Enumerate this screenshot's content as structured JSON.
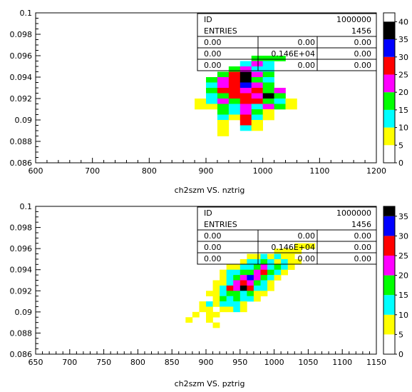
{
  "chart_data": [
    {
      "type": "heatmap",
      "xlabel": "ch2szm VS. nztrig",
      "xlim": [
        600,
        1200
      ],
      "ylim": [
        0.086,
        0.1
      ],
      "xticks": [
        600,
        700,
        800,
        900,
        1000,
        1100,
        1200
      ],
      "yticks": [
        0.086,
        0.088,
        0.09,
        0.092,
        0.094,
        0.096,
        0.098,
        0.1
      ],
      "xtick_labels": [
        "600",
        "700",
        "800",
        "900",
        "1000",
        "1100",
        "1200"
      ],
      "ytick_labels": [
        "0.086",
        "0.088",
        "0.09",
        "0.092",
        "0.094",
        "0.096",
        "0.098",
        "0.1"
      ],
      "colorbar": {
        "range": [
          0,
          42.5
        ],
        "levels": [
          0,
          5,
          10,
          15,
          20,
          25,
          30,
          35,
          40
        ],
        "tick_labels": [
          "0",
          "5",
          "10",
          "15",
          "20",
          "25",
          "30",
          "35",
          "40"
        ],
        "colors": [
          "#ffffff",
          "#ffff00",
          "#00ffff",
          "#00ff00",
          "#ff00ff",
          "#ff0000",
          "#0000ff",
          "#000000"
        ]
      },
      "stats": {
        "id_label": "ID",
        "id_value": "1000000",
        "entries_label": "ENTRIES",
        "entries_value": "1456",
        "grid": [
          [
            "0.00",
            "0.00",
            "0.00"
          ],
          [
            "0.00",
            "0.146E+04",
            "0.00"
          ],
          [
            "0.00",
            "0.00",
            "0.00"
          ]
        ]
      },
      "bin_width": [
        20,
        0.0005
      ],
      "cells": [
        [
          980,
          0.0955,
          3
        ],
        [
          1000,
          0.0955,
          3
        ],
        [
          1020,
          0.0955,
          3
        ],
        [
          960,
          0.095,
          2
        ],
        [
          980,
          0.095,
          4
        ],
        [
          1000,
          0.095,
          2
        ],
        [
          940,
          0.0945,
          3
        ],
        [
          960,
          0.0945,
          4
        ],
        [
          980,
          0.0945,
          2
        ],
        [
          1000,
          0.0945,
          2
        ],
        [
          920,
          0.094,
          3
        ],
        [
          940,
          0.094,
          5
        ],
        [
          960,
          0.094,
          7
        ],
        [
          980,
          0.094,
          4
        ],
        [
          1000,
          0.094,
          3
        ],
        [
          900,
          0.0935,
          3
        ],
        [
          920,
          0.0935,
          4
        ],
        [
          940,
          0.0935,
          5
        ],
        [
          960,
          0.0935,
          8
        ],
        [
          980,
          0.0935,
          3
        ],
        [
          1000,
          0.0935,
          2
        ],
        [
          900,
          0.093,
          2
        ],
        [
          920,
          0.093,
          4
        ],
        [
          940,
          0.093,
          5
        ],
        [
          960,
          0.093,
          6
        ],
        [
          980,
          0.093,
          4
        ],
        [
          1000,
          0.093,
          3
        ],
        [
          900,
          0.0925,
          3
        ],
        [
          920,
          0.0925,
          5
        ],
        [
          940,
          0.0925,
          5
        ],
        [
          960,
          0.0925,
          4
        ],
        [
          980,
          0.0925,
          5
        ],
        [
          1000,
          0.0925,
          3
        ],
        [
          1020,
          0.0925,
          4
        ],
        [
          900,
          0.092,
          2
        ],
        [
          920,
          0.092,
          3
        ],
        [
          940,
          0.092,
          5
        ],
        [
          960,
          0.092,
          5
        ],
        [
          980,
          0.092,
          4
        ],
        [
          1000,
          0.092,
          7
        ],
        [
          1020,
          0.092,
          3
        ],
        [
          880,
          0.0915,
          1
        ],
        [
          900,
          0.0915,
          2
        ],
        [
          920,
          0.0915,
          4
        ],
        [
          940,
          0.0915,
          3
        ],
        [
          960,
          0.0915,
          5
        ],
        [
          980,
          0.0915,
          5
        ],
        [
          1000,
          0.0915,
          3
        ],
        [
          1020,
          0.0915,
          2
        ],
        [
          1040,
          0.0915,
          1
        ],
        [
          880,
          0.091,
          1
        ],
        [
          900,
          0.091,
          1
        ],
        [
          920,
          0.091,
          3
        ],
        [
          940,
          0.091,
          2
        ],
        [
          960,
          0.091,
          4
        ],
        [
          980,
          0.091,
          2
        ],
        [
          1000,
          0.091,
          4
        ],
        [
          1020,
          0.091,
          3
        ],
        [
          1040,
          0.091,
          1
        ],
        [
          920,
          0.0905,
          3
        ],
        [
          940,
          0.0905,
          2
        ],
        [
          960,
          0.0905,
          4
        ],
        [
          980,
          0.0905,
          3
        ],
        [
          1000,
          0.0905,
          1
        ],
        [
          920,
          0.09,
          2
        ],
        [
          940,
          0.09,
          1
        ],
        [
          960,
          0.09,
          5
        ],
        [
          980,
          0.09,
          2
        ],
        [
          1000,
          0.09,
          1
        ],
        [
          920,
          0.0895,
          1
        ],
        [
          960,
          0.0895,
          5
        ],
        [
          980,
          0.0895,
          1
        ],
        [
          920,
          0.089,
          1
        ],
        [
          960,
          0.089,
          2
        ],
        [
          980,
          0.089,
          1
        ],
        [
          920,
          0.0885,
          1
        ]
      ]
    },
    {
      "type": "heatmap",
      "xlabel": "ch2szm VS. pztrig",
      "xlim": [
        650,
        1150
      ],
      "ylim": [
        0.086,
        0.1
      ],
      "xticks": [
        650,
        700,
        750,
        800,
        850,
        900,
        950,
        1000,
        1050,
        1100,
        1150
      ],
      "yticks": [
        0.086,
        0.088,
        0.09,
        0.092,
        0.094,
        0.096,
        0.098,
        0.1
      ],
      "xtick_labels": [
        "650",
        "700",
        "750",
        "800",
        "850",
        "900",
        "950",
        "1000",
        "1050",
        "1100",
        "1150"
      ],
      "ytick_labels": [
        "0.086",
        "0.088",
        "0.09",
        "0.092",
        "0.094",
        "0.096",
        "0.098",
        "0.1"
      ],
      "colorbar": {
        "range": [
          0,
          37.5
        ],
        "levels": [
          0,
          5,
          10,
          15,
          20,
          25,
          30,
          35
        ],
        "tick_labels": [
          "0",
          "5",
          "10",
          "15",
          "20",
          "25",
          "30",
          "35"
        ],
        "colors": [
          "#ffffff",
          "#ffff00",
          "#00ffff",
          "#00ff00",
          "#ff00ff",
          "#ff0000",
          "#0000ff",
          "#000000"
        ]
      },
      "stats": {
        "id_label": "ID",
        "id_value": "1000000",
        "entries_label": "ENTRIES",
        "entries_value": "1456",
        "grid": [
          [
            "0.00",
            "0.00",
            "0.00"
          ],
          [
            "0.00",
            "0.146E+04",
            "0.00"
          ],
          [
            "0.00",
            "0.00",
            "0.00"
          ]
        ]
      },
      "bin_width": [
        10,
        0.0005
      ],
      "cells": [
        [
          1030,
          0.096,
          1
        ],
        [
          1040,
          0.096,
          1
        ],
        [
          1050,
          0.096,
          1
        ],
        [
          1000,
          0.0955,
          1
        ],
        [
          1010,
          0.0955,
          1
        ],
        [
          1020,
          0.0955,
          1
        ],
        [
          1030,
          0.0955,
          1
        ],
        [
          960,
          0.095,
          1
        ],
        [
          970,
          0.095,
          1
        ],
        [
          980,
          0.095,
          2
        ],
        [
          990,
          0.095,
          1
        ],
        [
          1000,
          0.095,
          2
        ],
        [
          1010,
          0.095,
          1
        ],
        [
          1020,
          0.095,
          1
        ],
        [
          950,
          0.0945,
          1
        ],
        [
          960,
          0.0945,
          2
        ],
        [
          970,
          0.0945,
          2
        ],
        [
          980,
          0.0945,
          3
        ],
        [
          990,
          0.0945,
          2
        ],
        [
          1000,
          0.0945,
          1
        ],
        [
          1010,
          0.0945,
          2
        ],
        [
          1020,
          0.0945,
          1
        ],
        [
          1030,
          0.0945,
          1
        ],
        [
          930,
          0.094,
          1
        ],
        [
          940,
          0.094,
          1
        ],
        [
          950,
          0.094,
          2
        ],
        [
          960,
          0.094,
          2
        ],
        [
          970,
          0.094,
          3
        ],
        [
          980,
          0.094,
          4
        ],
        [
          990,
          0.094,
          2
        ],
        [
          1000,
          0.094,
          3
        ],
        [
          1010,
          0.094,
          2
        ],
        [
          1020,
          0.094,
          1
        ],
        [
          920,
          0.0935,
          1
        ],
        [
          930,
          0.0935,
          2
        ],
        [
          940,
          0.0935,
          2
        ],
        [
          950,
          0.0935,
          3
        ],
        [
          960,
          0.0935,
          3
        ],
        [
          970,
          0.0935,
          4
        ],
        [
          980,
          0.0935,
          5
        ],
        [
          990,
          0.0935,
          3
        ],
        [
          1000,
          0.0935,
          2
        ],
        [
          1010,
          0.0935,
          1
        ],
        [
          920,
          0.093,
          1
        ],
        [
          930,
          0.093,
          2
        ],
        [
          940,
          0.093,
          3
        ],
        [
          950,
          0.093,
          4
        ],
        [
          960,
          0.093,
          6
        ],
        [
          970,
          0.093,
          4
        ],
        [
          980,
          0.093,
          3
        ],
        [
          990,
          0.093,
          2
        ],
        [
          1000,
          0.093,
          1
        ],
        [
          910,
          0.0925,
          1
        ],
        [
          920,
          0.0925,
          1
        ],
        [
          930,
          0.0925,
          2
        ],
        [
          940,
          0.0925,
          4
        ],
        [
          950,
          0.0925,
          5
        ],
        [
          960,
          0.0925,
          4
        ],
        [
          970,
          0.0925,
          3
        ],
        [
          980,
          0.0925,
          2
        ],
        [
          990,
          0.0925,
          1
        ],
        [
          910,
          0.092,
          1
        ],
        [
          920,
          0.092,
          2
        ],
        [
          930,
          0.092,
          5
        ],
        [
          940,
          0.092,
          4
        ],
        [
          950,
          0.092,
          8
        ],
        [
          960,
          0.092,
          5
        ],
        [
          970,
          0.092,
          2
        ],
        [
          980,
          0.092,
          2
        ],
        [
          990,
          0.092,
          1
        ],
        [
          900,
          0.0915,
          1
        ],
        [
          910,
          0.0915,
          1
        ],
        [
          920,
          0.0915,
          2
        ],
        [
          930,
          0.0915,
          3
        ],
        [
          940,
          0.0915,
          3
        ],
        [
          950,
          0.0915,
          2
        ],
        [
          960,
          0.0915,
          3
        ],
        [
          970,
          0.0915,
          1
        ],
        [
          980,
          0.0915,
          1
        ],
        [
          910,
          0.091,
          1
        ],
        [
          920,
          0.091,
          3
        ],
        [
          930,
          0.091,
          2
        ],
        [
          940,
          0.091,
          3
        ],
        [
          950,
          0.091,
          2
        ],
        [
          960,
          0.091,
          2
        ],
        [
          970,
          0.091,
          1
        ],
        [
          890,
          0.0905,
          1
        ],
        [
          900,
          0.0905,
          2
        ],
        [
          910,
          0.0905,
          1
        ],
        [
          920,
          0.0905,
          2
        ],
        [
          930,
          0.0905,
          2
        ],
        [
          940,
          0.0905,
          2
        ],
        [
          950,
          0.0905,
          1
        ],
        [
          890,
          0.09,
          1
        ],
        [
          900,
          0.09,
          1
        ],
        [
          920,
          0.09,
          1
        ],
        [
          930,
          0.09,
          1
        ],
        [
          940,
          0.09,
          2
        ],
        [
          950,
          0.09,
          1
        ],
        [
          880,
          0.0895,
          1
        ],
        [
          900,
          0.0895,
          1
        ],
        [
          910,
          0.0895,
          1
        ],
        [
          870,
          0.089,
          1
        ],
        [
          900,
          0.089,
          1
        ],
        [
          910,
          0.0885,
          1
        ]
      ]
    }
  ]
}
